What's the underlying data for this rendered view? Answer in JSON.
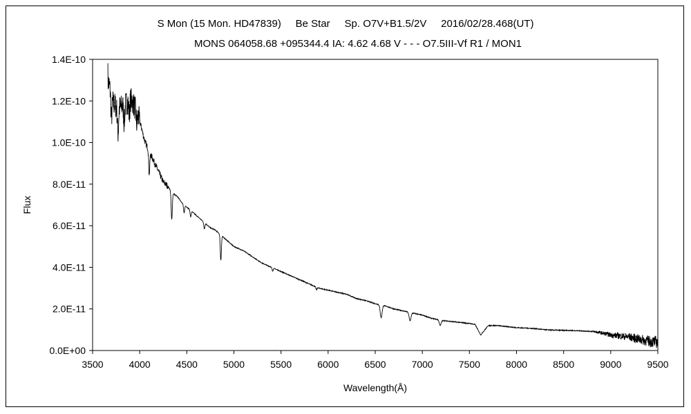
{
  "chart_data": {
    "type": "line",
    "title_lines": [
      "S Mon (15 Mon. HD47839)     Be Star     Sp. O7V+B1.5/2V     2016/02/28.468(UT)",
      "MONS 064058.68 +095344.4 IA: 4.62 4.68 V - - - O7.5III-Vf R1 / MON1"
    ],
    "xlabel": "Wavelength(Å)",
    "ylabel": "Flux",
    "xlim": [
      3500,
      9500
    ],
    "ylim": [
      0,
      1.4e-10
    ],
    "x_ticks": [
      "3500",
      "4000",
      "4500",
      "5000",
      "5500",
      "6000",
      "6500",
      "7000",
      "7500",
      "8000",
      "8500",
      "9000",
      "9500"
    ],
    "y_ticks": [
      "0.0E+00",
      "2.0E-11",
      "4.0E-11",
      "6.0E-11",
      "8.0E-11",
      "1.0E-10",
      "1.2E-10",
      "1.4E-10"
    ],
    "grid": false,
    "legend": "none",
    "line_color": "#000000",
    "series": [
      {
        "x": [
          3660,
          3680,
          3700,
          3720,
          3740,
          3760,
          3780,
          3800,
          3820,
          3840,
          3860,
          3880,
          3900,
          3920,
          3940,
          3960,
          3980,
          4000,
          4020,
          4040,
          4060,
          4080,
          4100,
          4120,
          4140,
          4160,
          4200,
          4250,
          4300,
          4340,
          4400,
          4450,
          4500,
          4550,
          4600,
          4650,
          4700,
          4750,
          4800,
          4850,
          4900,
          4950,
          5000,
          5100,
          5200,
          5300,
          5400,
          5500,
          5600,
          5700,
          5800,
          5900,
          6000,
          6100,
          6200,
          6300,
          6400,
          6500,
          6600,
          6700,
          6800,
          6900,
          7000,
          7100,
          7200,
          7300,
          7400,
          7500,
          7560,
          7620,
          7700,
          7800,
          7900,
          8000,
          8100,
          8200,
          8300,
          8400,
          8500,
          8600,
          8700,
          8800,
          8900,
          9000,
          9100,
          9200,
          9300,
          9400,
          9500
        ],
        "y": [
          1.3e-10,
          1.27e-10,
          1.22e-10,
          1.19e-10,
          1.18e-10,
          1.16e-10,
          1.17e-10,
          1.17e-10,
          1.18e-10,
          1.18e-10,
          1.19e-10,
          1.2e-10,
          1.21e-10,
          1.2e-10,
          1.18e-10,
          1.15e-10,
          1.14e-10,
          1.1e-10,
          1.07e-10,
          1.03e-10,
          1e-10,
          9.8e-11,
          9.7e-11,
          9.4e-11,
          9.2e-11,
          9e-11,
          8.6e-11,
          8.1e-11,
          7.9e-11,
          7.6e-11,
          7.4e-11,
          7.1e-11,
          6.9e-11,
          6.7e-11,
          6.5e-11,
          6.3e-11,
          6.1e-11,
          5.9e-11,
          5.8e-11,
          5.6e-11,
          5.4e-11,
          5.2e-11,
          5e-11,
          4.8e-11,
          4.5e-11,
          4.2e-11,
          4e-11,
          3.8e-11,
          3.6e-11,
          3.4e-11,
          3.2e-11,
          3e-11,
          2.9e-11,
          2.8e-11,
          2.7e-11,
          2.5e-11,
          2.4e-11,
          2.25e-11,
          2.15e-11,
          2e-11,
          1.9e-11,
          1.8e-11,
          1.7e-11,
          1.55e-11,
          1.45e-11,
          1.4e-11,
          1.35e-11,
          1.3e-11,
          1.25e-11,
          7.5e-12,
          1.2e-11,
          1.2e-11,
          1.15e-11,
          1.1e-11,
          1.08e-11,
          1.05e-11,
          1e-11,
          9.8e-12,
          9.7e-12,
          9.6e-12,
          9.4e-12,
          9.2e-12,
          8.5e-12,
          7.5e-12,
          7e-12,
          6.5e-12,
          5.5e-12,
          4.5e-12,
          4e-12
        ]
      }
    ],
    "absorption_lines": [
      {
        "x": 3700,
        "depth": 1e-11
      },
      {
        "x": 3770,
        "depth": 1.2e-11
      },
      {
        "x": 3835,
        "depth": 8e-12
      },
      {
        "x": 3889,
        "depth": 7e-12
      },
      {
        "x": 3970,
        "depth": 6e-12
      },
      {
        "x": 4101,
        "depth": 1.2e-11
      },
      {
        "x": 4340,
        "depth": 1.3e-11
      },
      {
        "x": 4471,
        "depth": 4e-12
      },
      {
        "x": 4541,
        "depth": 3e-12
      },
      {
        "x": 4686,
        "depth": 3e-12
      },
      {
        "x": 4861,
        "depth": 1.2e-11
      },
      {
        "x": 5411,
        "depth": 1.5e-12
      },
      {
        "x": 5876,
        "depth": 1.2e-12
      },
      {
        "x": 6563,
        "depth": 6e-12
      },
      {
        "x": 6870,
        "depth": 4e-12
      },
      {
        "x": 7190,
        "depth": 2.5e-12
      }
    ]
  }
}
